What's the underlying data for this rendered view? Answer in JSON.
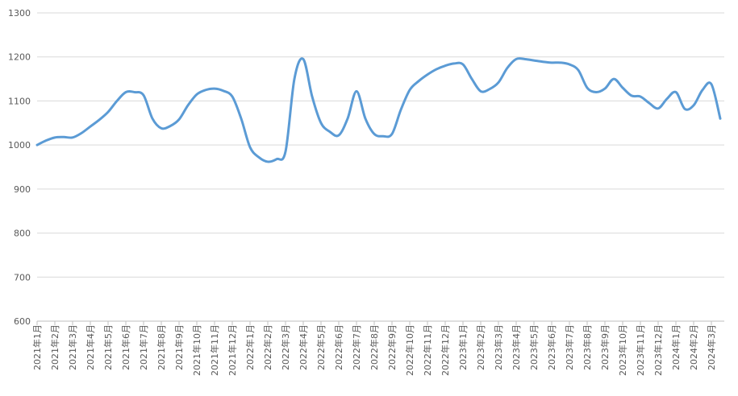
{
  "chart_data": {
    "type": "line",
    "categories": [
      "2021年1月",
      null,
      "2021年2月",
      null,
      "2021年3月",
      null,
      "2021年4月",
      null,
      "2021年5月",
      null,
      "2021年6月",
      null,
      "2021年7月",
      null,
      "2021年8月",
      null,
      "2021年9月",
      null,
      "2021年10月",
      null,
      "2021年11月",
      null,
      "2021年12月",
      null,
      "2022年1月",
      null,
      "2022年2月",
      null,
      "2022年3月",
      null,
      "2022年4月",
      null,
      "2022年5月",
      null,
      "2022年6月",
      null,
      "2022年7月",
      null,
      "2022年8月",
      null,
      "2022年9月",
      null,
      "2022年10月",
      null,
      "2022年11月",
      null,
      "2022年12月",
      null,
      "2023年1月",
      null,
      "2023年2月",
      null,
      "2023年3月",
      null,
      "2023年4月",
      null,
      "2023年5月",
      null,
      "2023年6月",
      null,
      "2023年7月",
      null,
      "2023年8月",
      null,
      "2023年9月",
      null,
      "2023年10月",
      null,
      "2023年11月",
      null,
      "2023年12月",
      null,
      "2024年1月",
      null,
      "2024年2月",
      null,
      "2024年3月",
      null
    ],
    "values": [
      1000,
      1010,
      1017,
      1018,
      1017,
      1027,
      1042,
      1057,
      1075,
      1100,
      1120,
      1120,
      1113,
      1060,
      1038,
      1043,
      1058,
      1090,
      1115,
      1125,
      1128,
      1123,
      1110,
      1060,
      995,
      972,
      962,
      968,
      985,
      1150,
      1195,
      1110,
      1050,
      1030,
      1022,
      1060,
      1122,
      1060,
      1025,
      1020,
      1025,
      1080,
      1125,
      1145,
      1160,
      1172,
      1180,
      1185,
      1183,
      1150,
      1122,
      1127,
      1142,
      1175,
      1195,
      1195,
      1192,
      1189,
      1187,
      1187,
      1183,
      1170,
      1130,
      1120,
      1128,
      1150,
      1130,
      1112,
      1110,
      1095,
      1083,
      1105,
      1120,
      1082,
      1090,
      1125,
      1138,
      1060
    ],
    "color": "#5b9bd5",
    "ylim": [
      600,
      1300
    ],
    "yticks": [
      600,
      700,
      800,
      900,
      1000,
      1100,
      1200,
      1300
    ],
    "grid": true
  }
}
